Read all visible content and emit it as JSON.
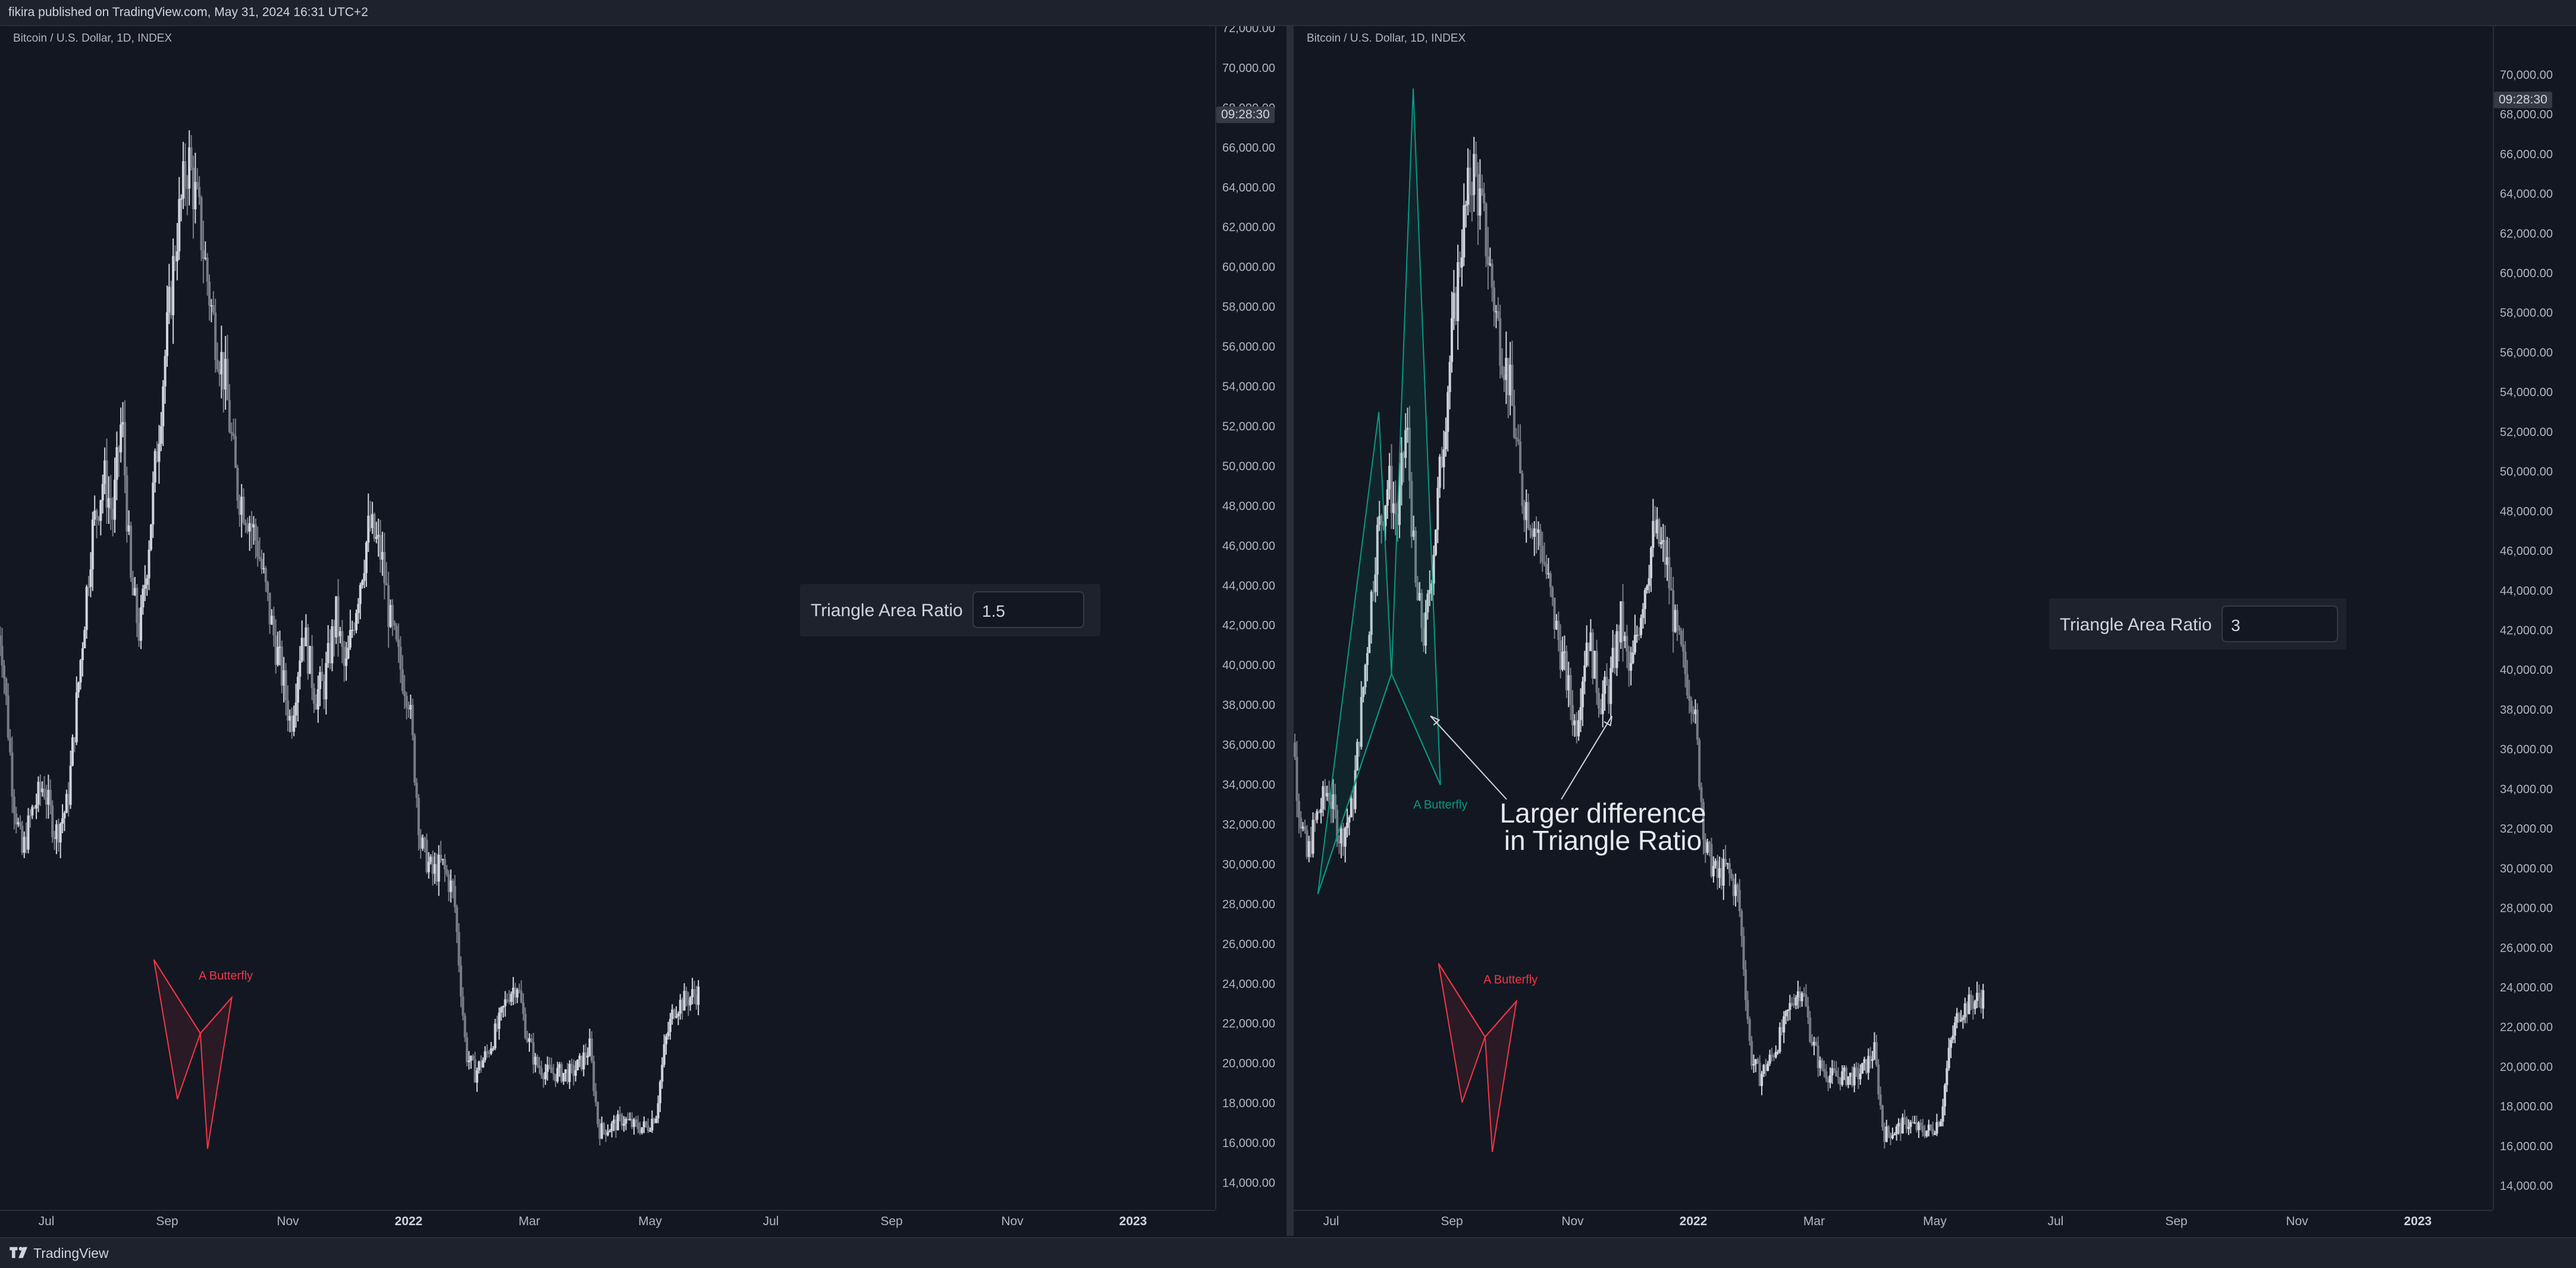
{
  "header": {
    "publish_text": "fikira published on TradingView.com, May 31, 2024 16:31 UTC+2"
  },
  "footer": {
    "brand": "TradingView"
  },
  "chart_data": [
    {
      "type": "candlestick",
      "panel": "left",
      "title": "Bitcoin / U.S. Dollar, 1D, INDEX",
      "countdown": "09:28:30",
      "x_ticks": [
        "Jul",
        "Sep",
        "Nov",
        "2022",
        "Mar",
        "May",
        "Jul",
        "Sep",
        "Nov",
        "2023"
      ],
      "y_ticks": [
        "72,000.00",
        "70,000.00",
        "68,000.00",
        "66,000.00",
        "64,000.00",
        "62,000.00",
        "60,000.00",
        "58,000.00",
        "56,000.00",
        "54,000.00",
        "52,000.00",
        "50,000.00",
        "48,000.00",
        "46,000.00",
        "44,000.00",
        "42,000.00",
        "40,000.00",
        "38,000.00",
        "36,000.00",
        "34,000.00",
        "32,000.00",
        "30,000.00",
        "28,000.00",
        "26,000.00",
        "24,000.00",
        "22,000.00",
        "20,000.00",
        "18,000.00",
        "16,000.00",
        "14,000.00"
      ],
      "ylim": [
        13000,
        72000
      ],
      "input_label": "Triangle Area Ratio",
      "input_value": "1.5",
      "patterns": [
        {
          "label": "A Butterfly",
          "color": "#f23645",
          "points": [
            [
              1.78,
              25200
            ],
            [
              2.17,
              18200
            ],
            [
              2.55,
              21500
            ],
            [
              2.67,
              15700
            ],
            [
              3.07,
              23300
            ]
          ]
        }
      ]
    },
    {
      "type": "candlestick",
      "panel": "right",
      "title": "Bitcoin / U.S. Dollar, 1D, INDEX",
      "countdown": "09:28:30",
      "x_ticks": [
        "Jul",
        "Sep",
        "Nov",
        "2022",
        "Mar",
        "May",
        "Jul",
        "Sep",
        "Nov",
        "2023"
      ],
      "y_ticks": [
        "70,000.00",
        "68,000.00",
        "66,000.00",
        "64,000.00",
        "62,000.00",
        "60,000.00",
        "58,000.00",
        "56,000.00",
        "54,000.00",
        "52,000.00",
        "50,000.00",
        "48,000.00",
        "46,000.00",
        "44,000.00",
        "42,000.00",
        "40,000.00",
        "38,000.00",
        "36,000.00",
        "34,000.00",
        "32,000.00",
        "30,000.00",
        "28,000.00",
        "26,000.00",
        "24,000.00",
        "22,000.00",
        "20,000.00",
        "18,000.00",
        "16,000.00",
        "14,000.00"
      ],
      "ylim": [
        13000,
        71000
      ],
      "input_label": "Triangle Area Ratio",
      "input_value": "3",
      "annotation_lines": [
        "Larger difference",
        "in Triangle Ratio"
      ],
      "patterns": [
        {
          "label": "A Butterfly",
          "color": "#089981",
          "points": [
            [
              -0.22,
              28700
            ],
            [
              0.79,
              53000
            ],
            [
              1.0,
              39800
            ],
            [
              1.36,
              69300
            ],
            [
              1.81,
              34200
            ]
          ]
        },
        {
          "label": "A Butterfly",
          "color": "#f23645",
          "points": [
            [
              1.78,
              25200
            ],
            [
              2.17,
              18200
            ],
            [
              2.55,
              21500
            ],
            [
              2.67,
              15700
            ],
            [
              3.07,
              23300
            ]
          ]
        }
      ]
    }
  ]
}
